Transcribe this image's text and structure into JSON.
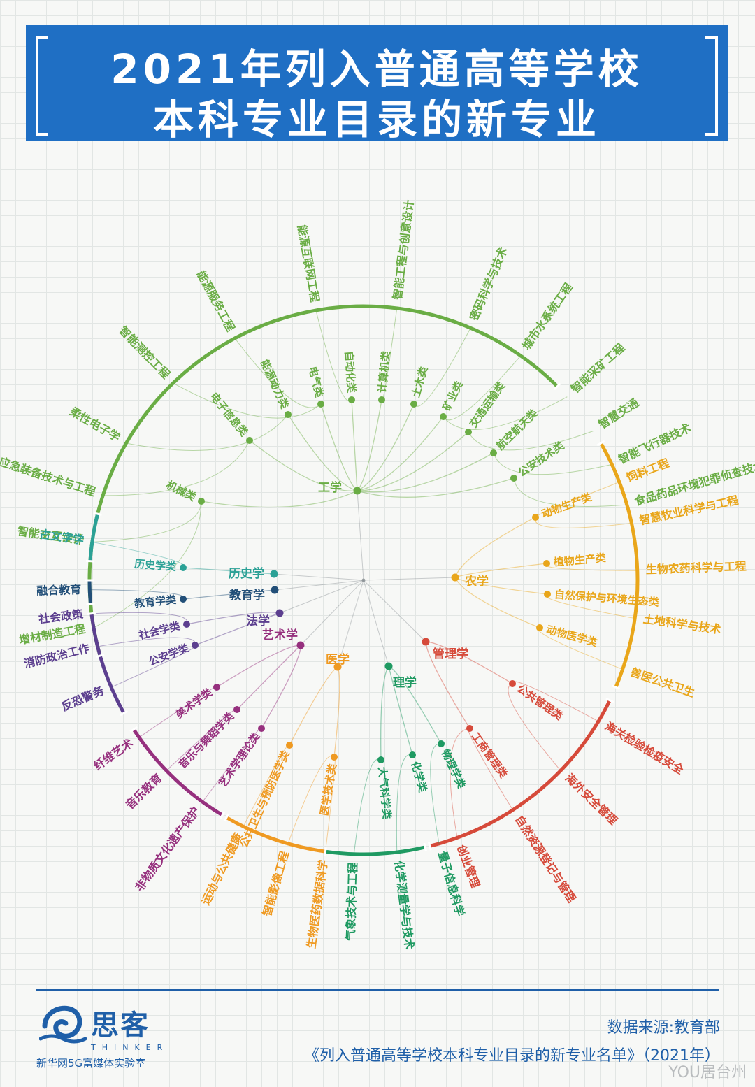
{
  "title": {
    "line1": "2021年列入普通高等学校",
    "line2": "本科专业目录的新专业"
  },
  "colors": {
    "engineering": "#6aad45",
    "agriculture": "#e9a61a",
    "management": "#d64a3a",
    "science": "#1f9a62",
    "medicine": "#ef9a22",
    "art": "#96307e",
    "law": "#5c3f8f",
    "education": "#224f78",
    "history": "#2ba196",
    "banner": "#1f6fc4",
    "footer": "#1f5fa8"
  },
  "disciplines": [
    {
      "name": "工学",
      "color": "engineering",
      "categories": [
        "机械类",
        "电子信息类",
        "能源动力类",
        "电气类",
        "自动化类",
        "计算机类",
        "土木类",
        "矿业类",
        "交通运输类",
        "航空航天类",
        "公安技术类"
      ],
      "majors": [
        "增材制造工程",
        "智能交互设计",
        "应急装备技术与工程",
        "柔性电子学",
        "智能测控工程",
        "能源服务工程",
        "能源互联网工程",
        "智能工程与创意设计",
        "密码科学与技术",
        "城市水系统工程",
        "智能采矿工程",
        "智慧交通",
        "智能飞行器技术",
        "食品药品环境犯罪侦查技术"
      ]
    },
    {
      "name": "农学",
      "color": "agriculture",
      "categories": [
        "动物生产类",
        "植物生产类",
        "自然保护与环境生态类",
        "动物医学类"
      ],
      "majors": [
        "饲料工程",
        "智慧牧业科学与工程",
        "生物农药科学与工程",
        "土地科学与技术",
        "兽医公共卫生"
      ]
    },
    {
      "name": "管理学",
      "color": "management",
      "categories": [
        "公共管理类",
        "工商管理类"
      ],
      "majors": [
        "海关检验检疫安全",
        "海外安全管理",
        "自然资源登记与管理",
        "创业管理"
      ]
    },
    {
      "name": "理学",
      "color": "science",
      "categories": [
        "物理学类",
        "化学类",
        "大气科学类"
      ],
      "majors": [
        "量子信息科学",
        "化学测量学与技术",
        "气象技术与工程"
      ]
    },
    {
      "name": "医学",
      "color": "medicine",
      "categories": [
        "医学技术类",
        "公共卫生与预防医学类"
      ],
      "majors": [
        "生物医药数据科学",
        "智能影像工程",
        "运动与公共健康"
      ]
    },
    {
      "name": "艺术学",
      "color": "art",
      "categories": [
        "艺术学理论类",
        "音乐与舞蹈学类",
        "美术学类"
      ],
      "majors": [
        "非物质文化遗产保护",
        "音乐教育",
        "纤维艺术"
      ]
    },
    {
      "name": "法学",
      "color": "law",
      "categories": [
        "公安学类",
        "社会学类"
      ],
      "majors": [
        "反恐警务",
        "消防政治工作",
        "社会政策"
      ]
    },
    {
      "name": "教育学",
      "color": "education",
      "categories": [
        "教育学类"
      ],
      "majors": [
        "融合教育"
      ]
    },
    {
      "name": "历史学",
      "color": "history",
      "categories": [
        "历史学类"
      ],
      "majors": [
        "古文字学"
      ]
    }
  ],
  "footer": {
    "logo_cn": "思客",
    "logo_en": "THINKER",
    "logo_sub": "新华网5G富媒体实验室",
    "source_line1": "数据来源:教育部",
    "source_line2": "《列入普通高等学校本科专业目录的新专业名单》（2021年）",
    "watermark": "YOU居台州"
  }
}
